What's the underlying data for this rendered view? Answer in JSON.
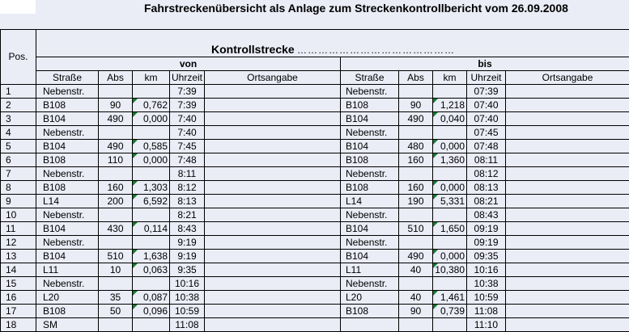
{
  "title": "Fahrstreckenübersicht als Anlage zum Streckenkontrollbericht vom 26.09.2008",
  "header": {
    "pos": "Pos.",
    "kontroll_label": "Kontrollstrecke",
    "kontroll_dots": "………………………………………",
    "von": "von",
    "bis": "bis",
    "cols": {
      "strasse": "Straße",
      "abs": "Abs",
      "km": "km",
      "uhrzeit": "Uhrzeit",
      "ortsangabe": "Ortsangabe"
    }
  },
  "rows": [
    {
      "pos": "1",
      "von": {
        "strasse": "Nebenstr.",
        "abs": "",
        "km": "",
        "uhrzeit": "7:39"
      },
      "bis": {
        "strasse": "Nebenstr.",
        "abs": "",
        "km": "",
        "uhrzeit": "07:39"
      }
    },
    {
      "pos": "2",
      "von": {
        "strasse": "B108",
        "abs": "90",
        "km": "0,762",
        "uhrzeit": "7:39"
      },
      "bis": {
        "strasse": "B108",
        "abs": "90",
        "km": "1,218",
        "uhrzeit": "07:40"
      }
    },
    {
      "pos": "3",
      "von": {
        "strasse": "B104",
        "abs": "490",
        "km": "0,000",
        "uhrzeit": "7:40"
      },
      "bis": {
        "strasse": "B104",
        "abs": "490",
        "km": "0,040",
        "uhrzeit": "07:40"
      }
    },
    {
      "pos": "4",
      "von": {
        "strasse": "Nebenstr.",
        "abs": "",
        "km": "",
        "uhrzeit": "7:40"
      },
      "bis": {
        "strasse": "Nebenstr.",
        "abs": "",
        "km": "",
        "uhrzeit": "07:45"
      }
    },
    {
      "pos": "5",
      "von": {
        "strasse": "B104",
        "abs": "490",
        "km": "0,585",
        "uhrzeit": "7:45"
      },
      "bis": {
        "strasse": "B104",
        "abs": "480",
        "km": "0,000",
        "uhrzeit": "07:48"
      }
    },
    {
      "pos": "6",
      "von": {
        "strasse": "B108",
        "abs": "110",
        "km": "0,000",
        "uhrzeit": "7:48"
      },
      "bis": {
        "strasse": "B108",
        "abs": "160",
        "km": "1,360",
        "uhrzeit": "08:11"
      }
    },
    {
      "pos": "7",
      "von": {
        "strasse": "Nebenstr.",
        "abs": "",
        "km": "",
        "uhrzeit": "8:11"
      },
      "bis": {
        "strasse": "Nebenstr.",
        "abs": "",
        "km": "",
        "uhrzeit": "08:12"
      }
    },
    {
      "pos": "8",
      "von": {
        "strasse": "B108",
        "abs": "160",
        "km": "1,303",
        "uhrzeit": "8:12"
      },
      "bis": {
        "strasse": "B108",
        "abs": "160",
        "km": "0,000",
        "uhrzeit": "08:13"
      }
    },
    {
      "pos": "9",
      "von": {
        "strasse": "L14",
        "abs": "200",
        "km": "6,592",
        "uhrzeit": "8:13"
      },
      "bis": {
        "strasse": "L14",
        "abs": "190",
        "km": "5,331",
        "uhrzeit": "08:21"
      }
    },
    {
      "pos": "10",
      "von": {
        "strasse": "Nebenstr.",
        "abs": "",
        "km": "",
        "uhrzeit": "8:21"
      },
      "bis": {
        "strasse": "Nebenstr.",
        "abs": "",
        "km": "",
        "uhrzeit": "08:43"
      }
    },
    {
      "pos": "11",
      "von": {
        "strasse": "B104",
        "abs": "430",
        "km": "0,114",
        "uhrzeit": "8:43"
      },
      "bis": {
        "strasse": "B104",
        "abs": "510",
        "km": "1,650",
        "uhrzeit": "09:19"
      }
    },
    {
      "pos": "12",
      "von": {
        "strasse": "Nebenstr.",
        "abs": "",
        "km": "",
        "uhrzeit": "9:19"
      },
      "bis": {
        "strasse": "Nebenstr.",
        "abs": "",
        "km": "",
        "uhrzeit": "09:19"
      }
    },
    {
      "pos": "13",
      "von": {
        "strasse": "B104",
        "abs": "510",
        "km": "1,638",
        "uhrzeit": "9:19"
      },
      "bis": {
        "strasse": "B104",
        "abs": "490",
        "km": "0,000",
        "uhrzeit": "09:35"
      }
    },
    {
      "pos": "14",
      "von": {
        "strasse": "L11",
        "abs": "10",
        "km": "0,063",
        "uhrzeit": "9:35"
      },
      "bis": {
        "strasse": "L11",
        "abs": "40",
        "km": "10,380",
        "uhrzeit": "10:16"
      }
    },
    {
      "pos": "15",
      "von": {
        "strasse": "Nebenstr.",
        "abs": "",
        "km": "",
        "uhrzeit": "10:16"
      },
      "bis": {
        "strasse": "Nebenstr.",
        "abs": "",
        "km": "",
        "uhrzeit": "10:38"
      }
    },
    {
      "pos": "16",
      "von": {
        "strasse": "L20",
        "abs": "35",
        "km": "0,087",
        "uhrzeit": "10:38"
      },
      "bis": {
        "strasse": "L20",
        "abs": "40",
        "km": "1,461",
        "uhrzeit": "10:59"
      }
    },
    {
      "pos": "17",
      "von": {
        "strasse": "B108",
        "abs": "50",
        "km": "0,096",
        "uhrzeit": "10:59"
      },
      "bis": {
        "strasse": "B108",
        "abs": "90",
        "km": "0,739",
        "uhrzeit": "11:08"
      }
    },
    {
      "pos": "18",
      "von": {
        "strasse": "SM",
        "abs": "",
        "km": "",
        "uhrzeit": "11:08"
      },
      "bis": {
        "strasse": "",
        "abs": "",
        "km": "",
        "uhrzeit": "11:10"
      }
    }
  ]
}
